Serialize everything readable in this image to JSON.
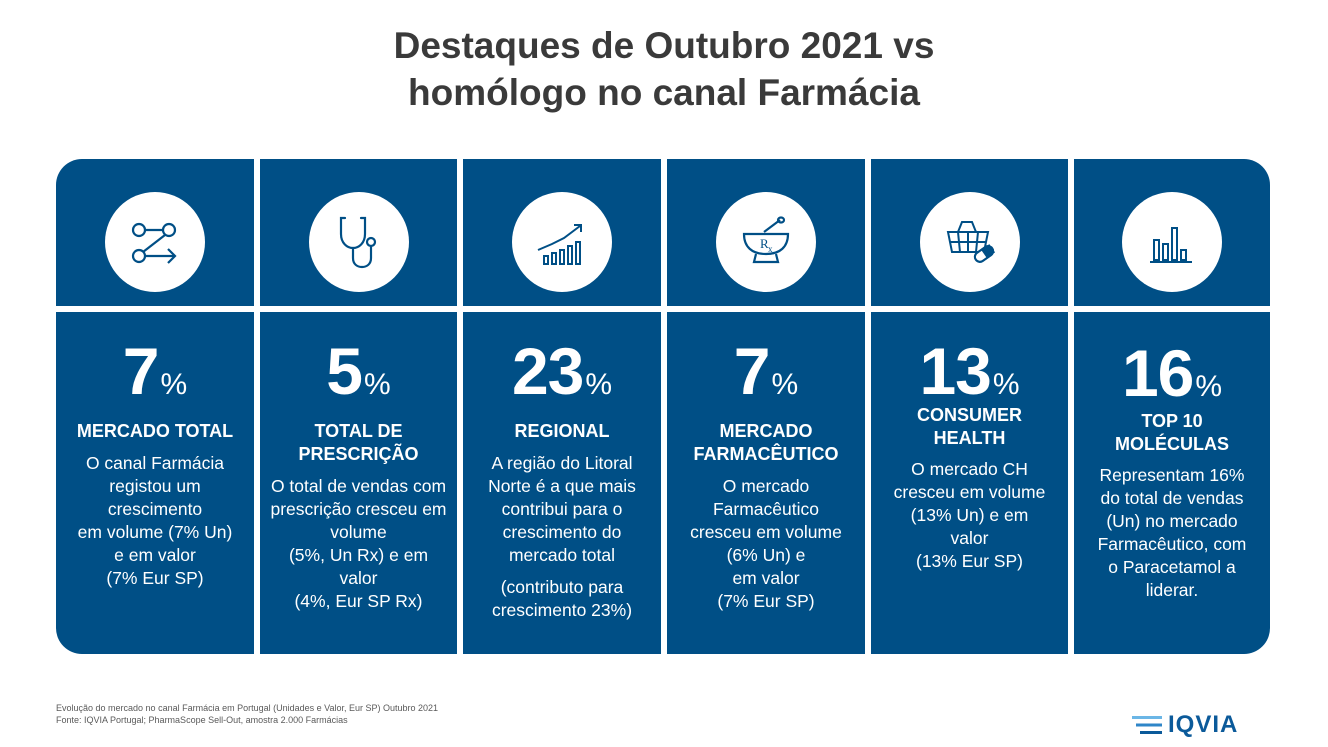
{
  "title": {
    "line1": "Destaques de Outubro 2021 vs",
    "line2": "homólogo no canal Farmácia"
  },
  "colors": {
    "panel": "#004f86",
    "title": "#3a3a3a",
    "logo": "#0b5a9a"
  },
  "cards": [
    {
      "icon": "network-arrow-icon",
      "value": "7",
      "unit": "%",
      "heading": [
        "MERCADO TOTAL"
      ],
      "body": [
        "O canal Farmácia",
        "registou um",
        "crescimento",
        "em volume (7% Un)",
        "e em valor",
        "(7% Eur SP)"
      ]
    },
    {
      "icon": "stethoscope-icon",
      "value": "5",
      "unit": "%",
      "heading": [
        "TOTAL DE",
        "PRESCRIÇÃO"
      ],
      "body": [
        "O total de vendas com",
        "prescrição cresceu em",
        "volume",
        "(5%, Un Rx) e em",
        "valor",
        "(4%, Eur SP Rx)"
      ]
    },
    {
      "icon": "growth-chart-icon",
      "value": "23",
      "unit": "%",
      "heading": [
        "REGIONAL"
      ],
      "body": [
        "A região do Litoral",
        "Norte é a que mais",
        "contribui para o",
        "crescimento do",
        "mercado total"
      ],
      "body2": [
        "(contributo para",
        "crescimento 23%)"
      ]
    },
    {
      "icon": "mortar-rx-icon",
      "value": "7",
      "unit": "%",
      "heading": [
        "MERCADO",
        "FARMACÊUTICO"
      ],
      "body": [
        "O mercado",
        "Farmacêutico",
        "cresceu em volume",
        "(6% Un) e",
        "em valor",
        "(7% Eur SP)"
      ]
    },
    {
      "icon": "basket-pill-icon",
      "value": "13",
      "unit": "%",
      "heading": [
        "CONSUMER",
        "HEALTH"
      ],
      "body": [
        "O mercado CH",
        "cresceu em volume",
        "(13% Un) e em",
        "valor",
        "(13% Eur SP)"
      ]
    },
    {
      "icon": "bar-chart-icon",
      "value": "16",
      "unit": "%",
      "heading": [
        "TOP 10",
        "MOLÉCULAS"
      ],
      "body": [
        "Representam 16%",
        "do total de vendas",
        "(Un) no mercado",
        "Farmacêutico, com",
        "o Paracetamol a",
        "liderar."
      ]
    }
  ],
  "footer": {
    "line1": "Evolução do mercado no canal Farmácia em Portugal (Unidades e Valor, Eur SP) Outubro 2021",
    "line2": "Fonte: IQVIA Portugal; PharmaScope Sell-Out, amostra 2.000 Farmácias"
  },
  "logo": {
    "text": "IQVIA"
  }
}
